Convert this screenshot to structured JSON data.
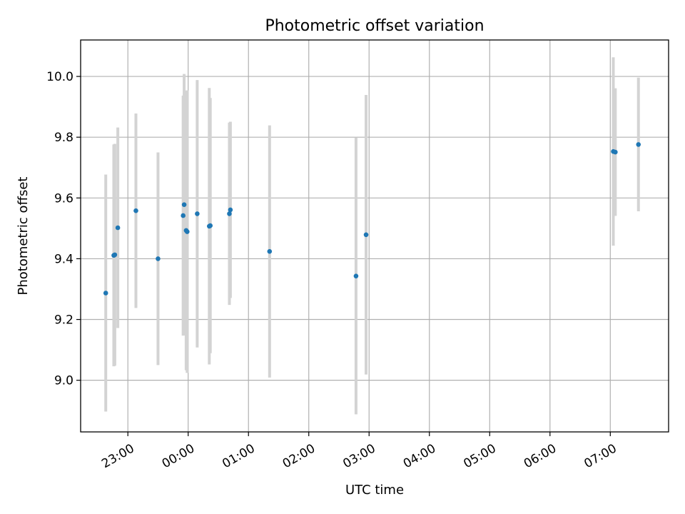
{
  "chart_data": {
    "type": "scatter",
    "title": "Photometric offset variation",
    "xlabel": "UTC time",
    "ylabel": "Photometric offset",
    "grid": true,
    "x_axis": {
      "type": "time",
      "ticks": [
        "23:00",
        "00:00",
        "01:00",
        "02:00",
        "03:00",
        "04:00",
        "05:00",
        "06:00",
        "07:00"
      ],
      "range": [
        "22:13",
        "07:58"
      ]
    },
    "y_axis": {
      "ticks": [
        "9.0",
        "9.2",
        "9.4",
        "9.6",
        "9.8",
        "10.0"
      ],
      "range": [
        8.83,
        10.12
      ]
    },
    "colors": {
      "point": "#1f77b4",
      "errorbar": "#d3d3d3"
    },
    "points": [
      {
        "x": "22:38",
        "y": 9.287,
        "err": 0.39
      },
      {
        "x": "22:46",
        "y": 9.411,
        "err": 0.365
      },
      {
        "x": "22:47",
        "y": 9.413,
        "err": 0.365
      },
      {
        "x": "22:50",
        "y": 9.502,
        "err": 0.33
      },
      {
        "x": "23:08",
        "y": 9.558,
        "err": 0.32
      },
      {
        "x": "23:30",
        "y": 9.4,
        "err": 0.35
      },
      {
        "x": "23:55",
        "y": 9.542,
        "err": 0.395
      },
      {
        "x": "23:56",
        "y": 9.578,
        "err": 0.43
      },
      {
        "x": "23:58",
        "y": 9.493,
        "err": 0.46
      },
      {
        "x": "23:59",
        "y": 9.489,
        "err": 0.465
      },
      {
        "x": "00:09",
        "y": 9.548,
        "err": 0.44
      },
      {
        "x": "00:21",
        "y": 9.507,
        "err": 0.455
      },
      {
        "x": "00:22",
        "y": 9.509,
        "err": 0.42
      },
      {
        "x": "00:41",
        "y": 9.548,
        "err": 0.3
      },
      {
        "x": "00:42",
        "y": 9.561,
        "err": 0.29
      },
      {
        "x": "01:21",
        "y": 9.424,
        "err": 0.415
      },
      {
        "x": "02:47",
        "y": 9.343,
        "err": 0.455
      },
      {
        "x": "02:57",
        "y": 9.479,
        "err": 0.46
      },
      {
        "x": "07:03",
        "y": 9.753,
        "err": 0.31
      },
      {
        "x": "07:05",
        "y": 9.751,
        "err": 0.21
      },
      {
        "x": "07:28",
        "y": 9.776,
        "err": 0.22
      }
    ]
  }
}
